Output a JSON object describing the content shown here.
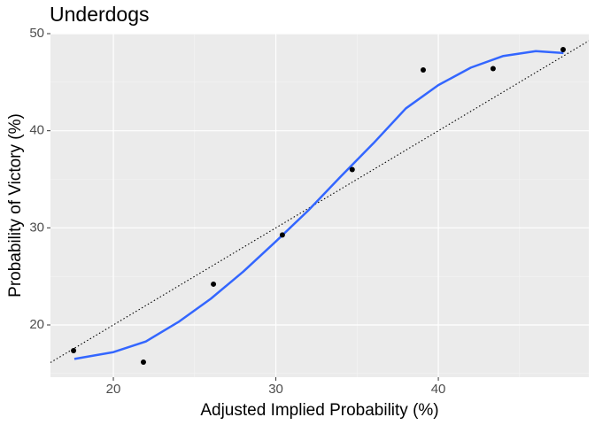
{
  "chart_data": {
    "type": "scatter",
    "title": "Underdogs",
    "x_label": "Adjusted Implied Probability (%)",
    "y_label": "Probability of Victory (%)",
    "xlim": [
      16.13,
      49.26
    ],
    "ylim": [
      14.62,
      50
    ],
    "xticks": [
      20,
      30,
      40
    ],
    "yticks": [
      20,
      30,
      40,
      50
    ],
    "xminor": [
      25,
      35,
      45
    ],
    "yminor": [
      15,
      25,
      35,
      45
    ],
    "grid": true,
    "reference_line": {
      "slope": 1,
      "intercept": 0,
      "style": "dotted",
      "color": "#000000"
    },
    "series": [
      {
        "type": "scatter",
        "color": "#000000",
        "x": [
          17.55,
          21.85,
          26.16,
          30.4,
          34.7,
          39.07,
          43.37,
          47.68
        ],
        "values": [
          17.36,
          16.17,
          24.2,
          29.27,
          36.0,
          46.26,
          46.4,
          48.36
        ]
      },
      {
        "type": "line",
        "color": "#3366ff",
        "x": [
          17.6,
          20,
          22,
          24,
          26,
          28,
          30,
          32,
          34,
          36,
          38,
          40,
          42,
          44,
          46,
          47.7
        ],
        "values": [
          16.5,
          17.2,
          18.3,
          20.3,
          22.7,
          25.5,
          28.6,
          31.8,
          35.3,
          38.7,
          42.3,
          44.7,
          46.5,
          47.7,
          48.2,
          48.0
        ]
      }
    ]
  }
}
